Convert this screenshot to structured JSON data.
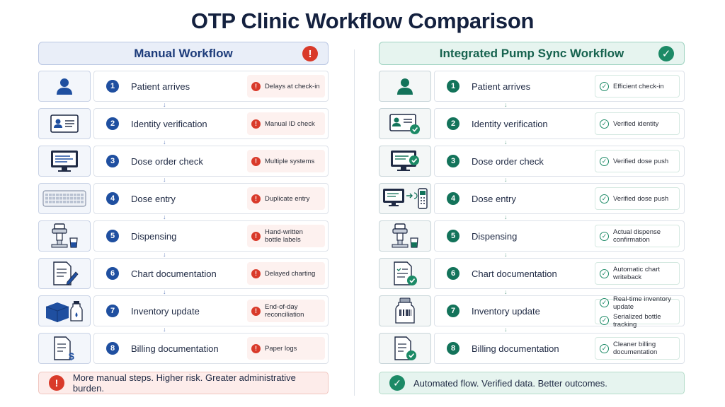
{
  "title": "OTP Clinic Workflow Comparison",
  "colors": {
    "manual_accent": "#1f4fa0",
    "integrated_accent": "#13735a",
    "warning": "#d93a2a",
    "success": "#1c8a66"
  },
  "manual": {
    "header": "Manual Workflow",
    "header_icon": "!",
    "steps": [
      {
        "num": "1",
        "label": "Patient arrives",
        "icon": "person-icon",
        "tag": [
          "Delays at check-in"
        ]
      },
      {
        "num": "2",
        "label": "Identity verification",
        "icon": "id-card-icon",
        "tag": [
          "Manual ID check"
        ]
      },
      {
        "num": "3",
        "label": "Dose order check",
        "icon": "monitor-icon",
        "tag": [
          "Multiple systems"
        ]
      },
      {
        "num": "4",
        "label": "Dose entry",
        "icon": "keyboard-icon",
        "tag": [
          "Duplicate entry"
        ]
      },
      {
        "num": "5",
        "label": "Dispensing",
        "icon": "dispenser-icon",
        "tag": [
          "Hand-written",
          "bottle labels"
        ]
      },
      {
        "num": "6",
        "label": "Chart documentation",
        "icon": "chart-pen-icon",
        "tag": [
          "Delayed charting"
        ]
      },
      {
        "num": "7",
        "label": "Inventory update",
        "icon": "box-bottle-icon",
        "tag": [
          "End-of-day",
          "reconciliation"
        ]
      },
      {
        "num": "8",
        "label": "Billing documentation",
        "icon": "billing-doc-icon",
        "tag": [
          "Paper logs"
        ]
      }
    ],
    "footer": "More manual steps. Higher risk. Greater administrative burden."
  },
  "integrated": {
    "header": "Integrated Pump Sync Workflow",
    "header_icon": "✓",
    "steps": [
      {
        "num": "1",
        "label": "Patient arrives",
        "icon": "person-icon",
        "tag": [
          "Efficient check-in"
        ]
      },
      {
        "num": "2",
        "label": "Identity verification",
        "icon": "id-card-check-icon",
        "tag": [
          "Verified identity"
        ]
      },
      {
        "num": "3",
        "label": "Dose order check",
        "icon": "monitor-check-icon",
        "tag": [
          "Verified dose push"
        ]
      },
      {
        "num": "4",
        "label": "Dose entry",
        "icon": "monitor-pump-icon",
        "tag": [
          "Verified dose push"
        ]
      },
      {
        "num": "5",
        "label": "Dispensing",
        "icon": "dispenser-icon",
        "tag": [
          "Actual dispense",
          "confirmation"
        ]
      },
      {
        "num": "6",
        "label": "Chart documentation",
        "icon": "chart-check-icon",
        "tag": [
          "Automatic chart",
          "writeback"
        ]
      },
      {
        "num": "7",
        "label": "Inventory update",
        "icon": "barcode-bottle-icon",
        "tag": [
          "Real-time inventory",
          "update"
        ],
        "tag2": [
          "Serialized bottle",
          "tracking"
        ]
      },
      {
        "num": "8",
        "label": "Billing documentation",
        "icon": "doc-check-icon",
        "tag": [
          "Cleaner billing",
          "documentation"
        ]
      }
    ],
    "footer": "Automated flow. Verified data. Better outcomes."
  }
}
